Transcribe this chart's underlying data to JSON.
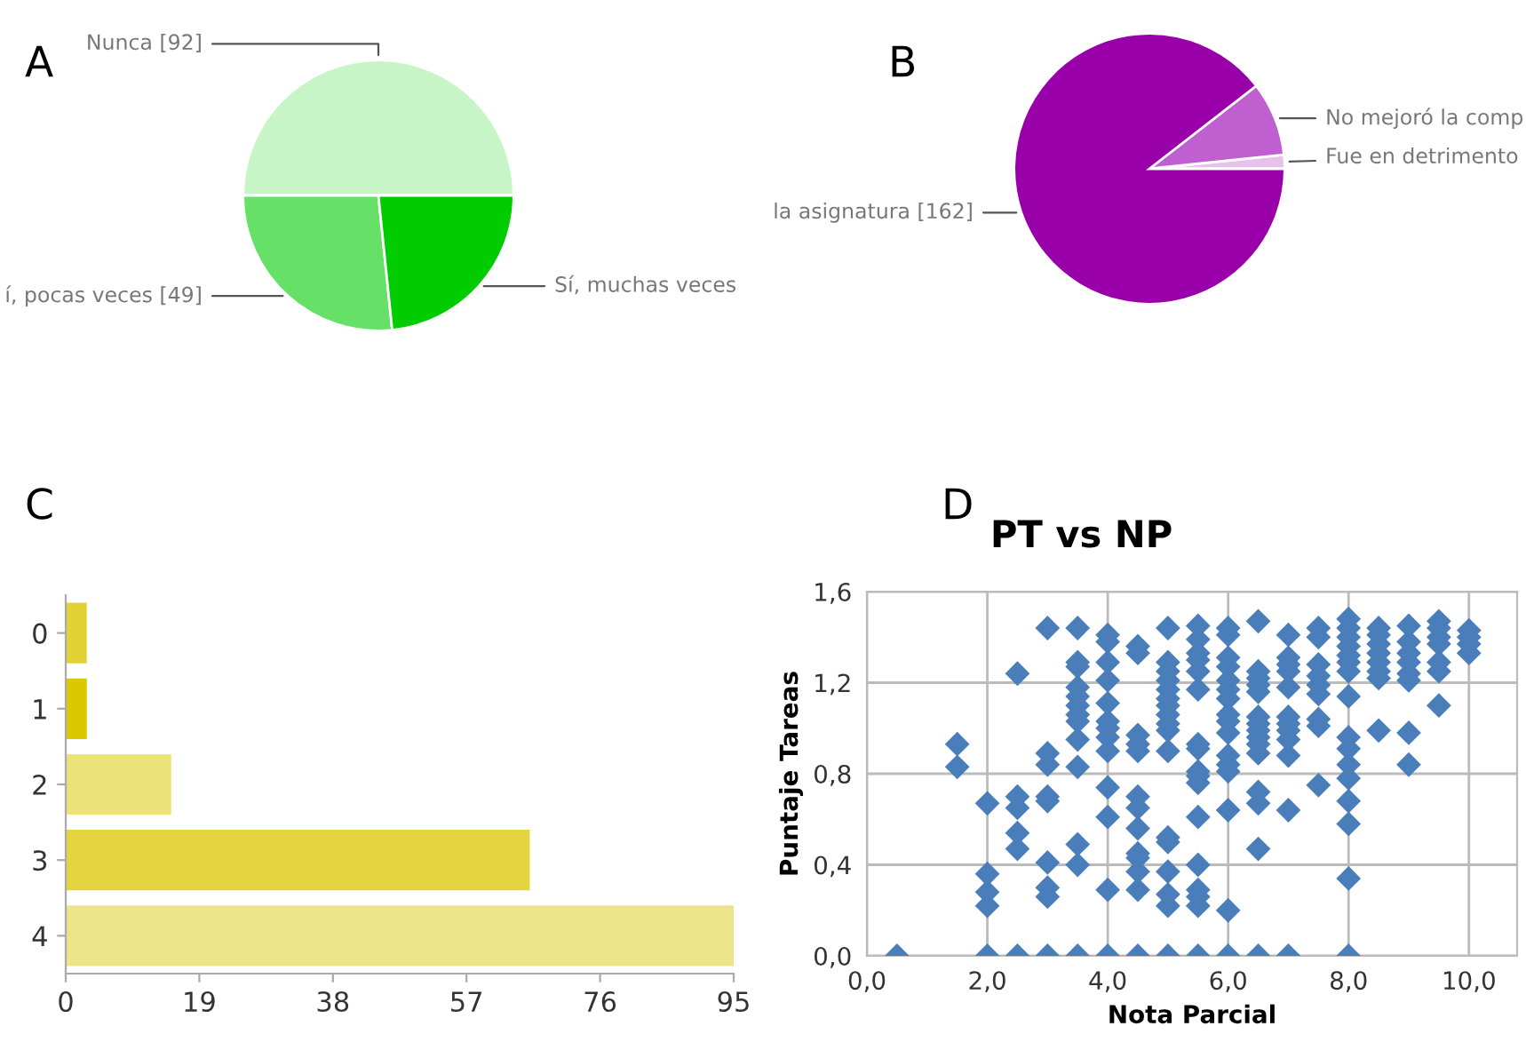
{
  "chart_data": [
    {
      "type": "pie",
      "annotations": [
        "A"
      ],
      "categories": [
        "Nunca [92]",
        "í, pocas veces [49]",
        "Sí, muchas veces"
      ],
      "values": [
        92,
        49,
        43
      ],
      "colors": [
        "#c8f5c8",
        "#66e066",
        "#00cc00"
      ]
    },
    {
      "type": "pie",
      "annotations": [
        "B"
      ],
      "categories": [
        "Fue en detrimento",
        "No mejoró la comp",
        "la asignatura [162]"
      ],
      "values": [
        3,
        16,
        162
      ],
      "colors": [
        "#e8c0ec",
        "#c060d0",
        "#9900aa"
      ]
    },
    {
      "type": "bar",
      "orientation": "horizontal",
      "annotations": [
        "C"
      ],
      "categories": [
        "0",
        "1",
        "2",
        "3",
        "4"
      ],
      "values": [
        3,
        3,
        15,
        66,
        95
      ],
      "colors": [
        "#e3d235",
        "#dcc800",
        "#ece27a",
        "#e3d43f",
        "#ece488"
      ],
      "xlim": [
        0,
        95
      ],
      "xticks": [
        0,
        19,
        38,
        57,
        76,
        95
      ],
      "grid": false
    },
    {
      "type": "scatter",
      "title": "PT vs NP",
      "annotations": [
        "D"
      ],
      "xlabel": "Nota Parcial",
      "ylabel": "Puntaje Tareas",
      "marker": "diamond",
      "grid": true,
      "xlim": [
        0,
        10.8
      ],
      "xticks": [
        {
          "value": 0,
          "label": "0,0"
        },
        {
          "value": 2,
          "label": "2,0"
        },
        {
          "value": 4,
          "label": "4,0"
        },
        {
          "value": 6,
          "label": "6,0"
        },
        {
          "value": 8,
          "label": "8,0"
        },
        {
          "value": 10,
          "label": "10,0"
        }
      ],
      "ylim": [
        0,
        1.6
      ],
      "yticks": [
        {
          "value": 0,
          "label": "0,0"
        },
        {
          "value": 0.4,
          "label": "0,4"
        },
        {
          "value": 0.8,
          "label": "0,8"
        },
        {
          "value": 1.2,
          "label": "1,2"
        },
        {
          "value": 1.6,
          "label": "1,6"
        }
      ],
      "series": [
        {
          "color": "#4a7ebb",
          "x": [
            0.5,
            1.5,
            1.5,
            2,
            2,
            2,
            2,
            2,
            2.5,
            2.5,
            2.5,
            2.5,
            2.5,
            2.5,
            3,
            3,
            3,
            3,
            3,
            3,
            3,
            3,
            3,
            3.5,
            3.5,
            3.5,
            3.5,
            3.5,
            3.5,
            3.5,
            3.5,
            3.5,
            3.5,
            3.5,
            3.5,
            3.5,
            4,
            4,
            4,
            4,
            4,
            4,
            4,
            4,
            4,
            4,
            4,
            4,
            4,
            4.5,
            4.5,
            4.5,
            4.5,
            4.5,
            4.5,
            4.5,
            4.5,
            4.5,
            4.5,
            4.5,
            4.5,
            4.5,
            5,
            5,
            5,
            5,
            5,
            5,
            5,
            5,
            5,
            5,
            5,
            5,
            5,
            5,
            5,
            5,
            5,
            5.5,
            5.5,
            5.5,
            5.5,
            5.5,
            5.5,
            5.5,
            5.5,
            5.5,
            5.5,
            5.5,
            5.5,
            5.5,
            5.5,
            5.5,
            5.5,
            5.5,
            6,
            6,
            6,
            6,
            6,
            6,
            6,
            6,
            6,
            6,
            6,
            6,
            6,
            6,
            6,
            6,
            6.5,
            6.5,
            6.5,
            6.5,
            6.5,
            6.5,
            6.5,
            6.5,
            6.5,
            6.5,
            6.5,
            6.5,
            6.5,
            6.5,
            6.5,
            7,
            7,
            7,
            7,
            7,
            7,
            7,
            7,
            7,
            7,
            7,
            7,
            7.5,
            7.5,
            7.5,
            7.5,
            7.5,
            7.5,
            7.5,
            7.5,
            7.5,
            8,
            8,
            8,
            8,
            8,
            8,
            8,
            8,
            8,
            8,
            8,
            8,
            8,
            8,
            8,
            8,
            8.5,
            8.5,
            8.5,
            8.5,
            8.5,
            8.5,
            8.5,
            8.5,
            9,
            9,
            9,
            9,
            9,
            9,
            9,
            9,
            9.5,
            9.5,
            9.5,
            9.5,
            9.5,
            9.5,
            9.5,
            10,
            10,
            10,
            10
          ],
          "values": [
            0,
            0.93,
            0.83,
            0.67,
            0.36,
            0.28,
            0.22,
            0,
            1.24,
            0.7,
            0.65,
            0.54,
            0.47,
            0,
            1.44,
            0.89,
            0.84,
            0.7,
            0.68,
            0.41,
            0.3,
            0.26,
            0,
            1.44,
            1.29,
            1.27,
            1.18,
            1.14,
            1.1,
            1.06,
            1.03,
            0.95,
            0.83,
            0.49,
            0.4,
            0,
            1.41,
            1.38,
            1.29,
            1.21,
            1.11,
            1.03,
            1.0,
            0.96,
            0.9,
            0.74,
            0.61,
            0.29,
            0,
            1.36,
            1.33,
            0.97,
            0.93,
            0.9,
            0.7,
            0.65,
            0.56,
            0.45,
            0.43,
            0.37,
            0.29,
            0,
            1.44,
            1.29,
            1.25,
            1.21,
            1.17,
            1.13,
            1.1,
            1.06,
            1.02,
            0.99,
            0.9,
            0.52,
            0.5,
            0.37,
            0.27,
            0.22,
            0,
            1.45,
            1.39,
            1.33,
            1.3,
            1.25,
            1.17,
            0.93,
            0.91,
            0.81,
            0.79,
            0.76,
            0.61,
            0.4,
            0.29,
            0.26,
            0.22,
            0,
            1.44,
            1.41,
            1.31,
            1.27,
            1.21,
            1.17,
            1.13,
            1.06,
            1.03,
            0.98,
            0.88,
            0.84,
            0.81,
            0.64,
            0.2,
            0,
            1.47,
            1.25,
            1.22,
            1.19,
            1.16,
            1.05,
            1.02,
            0.99,
            0.96,
            0.93,
            0.89,
            0.72,
            0.67,
            0.47,
            0,
            1.41,
            1.31,
            1.28,
            1.25,
            1.18,
            1.05,
            1.02,
            0.99,
            0.95,
            0.88,
            0.64,
            0,
            1.44,
            1.4,
            1.28,
            1.23,
            1.19,
            1.15,
            1.04,
            1.01,
            0.75,
            1.48,
            1.44,
            1.4,
            1.36,
            1.32,
            1.29,
            1.25,
            1.14,
            0.96,
            0.91,
            0.84,
            0.78,
            0.68,
            0.58,
            0.34,
            0,
            1.44,
            1.41,
            1.37,
            1.33,
            1.29,
            1.25,
            1.22,
            0.99,
            1.45,
            1.38,
            1.33,
            1.29,
            1.24,
            1.21,
            0.98,
            0.84,
            1.47,
            1.44,
            1.4,
            1.37,
            1.29,
            1.25,
            1.1,
            1.43,
            1.4,
            1.37,
            1.33
          ]
        }
      ]
    }
  ]
}
